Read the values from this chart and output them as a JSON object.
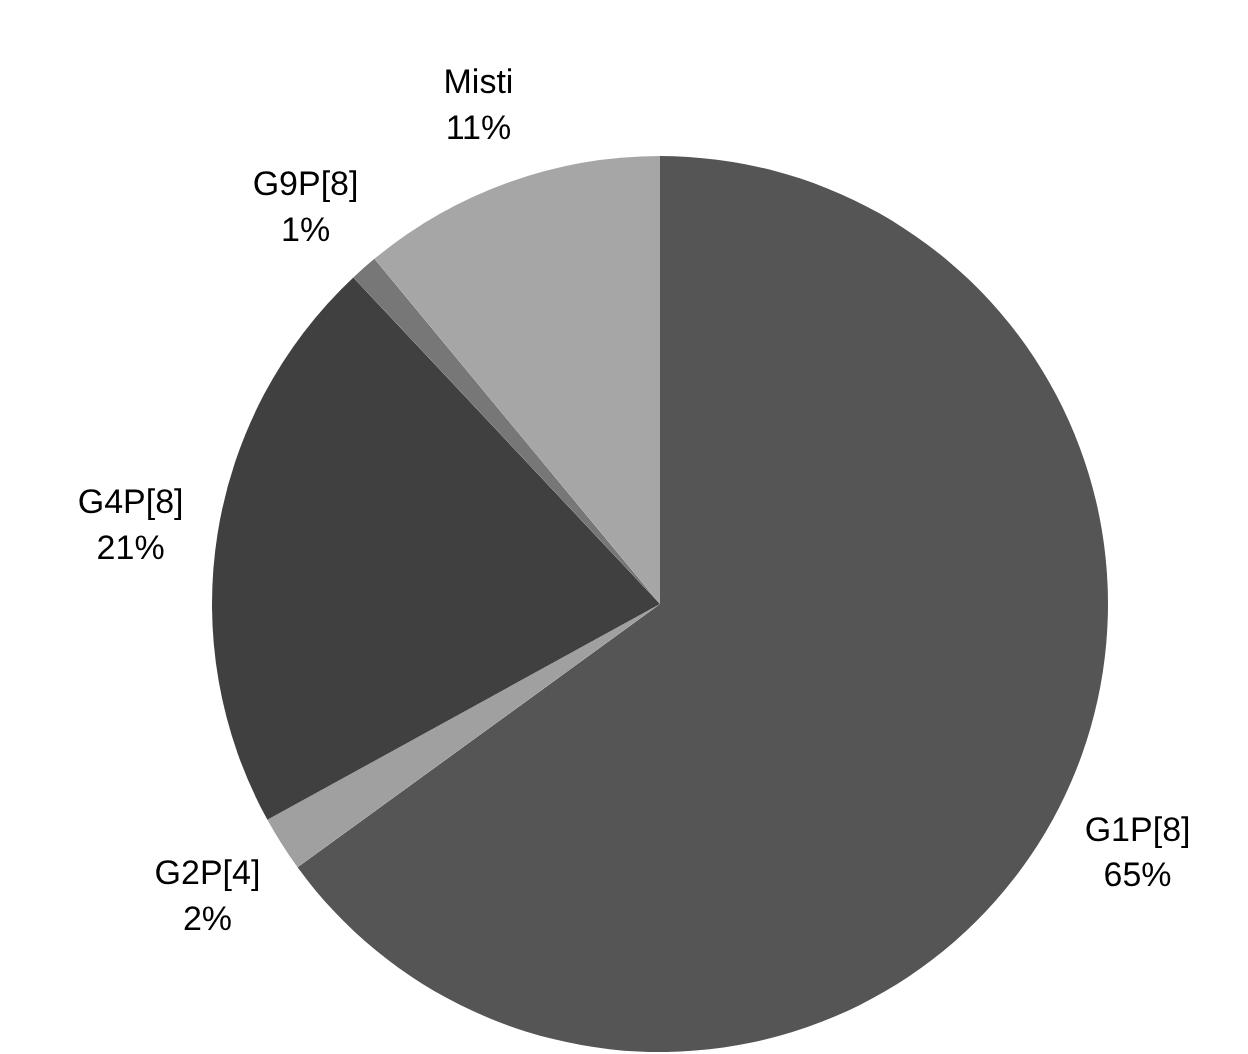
{
  "chart_data": {
    "type": "pie",
    "categories": [
      "G1P[8]",
      "G2P[4]",
      "G4P[8]",
      "G9P[8]",
      "Misti"
    ],
    "values": [
      65,
      2,
      21,
      1,
      11
    ],
    "colors": [
      "#555555",
      "#a0a0a0",
      "#404040",
      "#777777",
      "#a6a6a6"
    ],
    "value_labels": [
      "65%",
      "2%",
      "21%",
      "1%",
      "11%"
    ]
  }
}
